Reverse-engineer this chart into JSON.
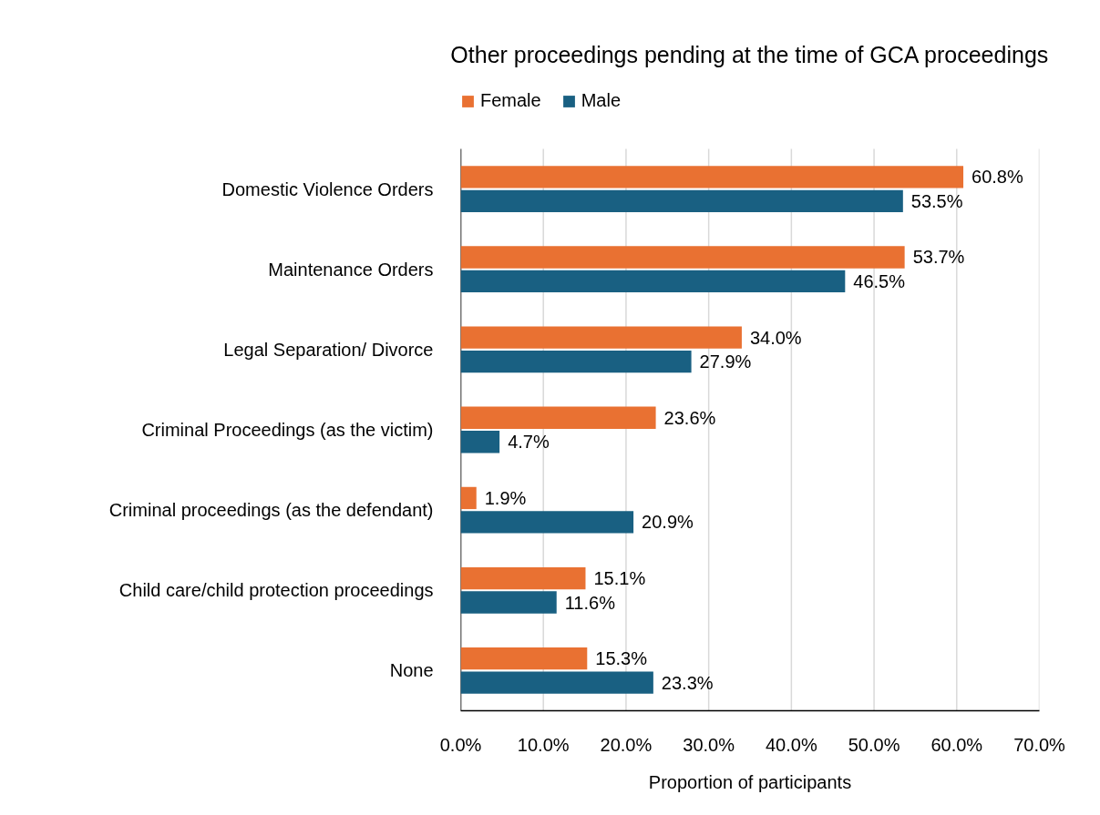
{
  "chart_data": {
    "type": "bar",
    "orientation": "horizontal",
    "title": "Other proceedings pending at the time of GCA proceedings",
    "xlabel": "Proportion of participants",
    "categories": [
      "Domestic Violence Orders",
      "Maintenance Orders",
      "Legal Separation/ Divorce",
      "Criminal Proceedings (as the victim)",
      "Criminal proceedings (as the defendant)",
      "Child care/child protection proceedings",
      "None"
    ],
    "series": [
      {
        "name": "Female",
        "color": "#e97132",
        "values": [
          60.8,
          53.7,
          34.0,
          23.6,
          1.9,
          15.1,
          15.3
        ],
        "value_labels": [
          "60.8%",
          "53.7%",
          "34.0%",
          "23.6%",
          "1.9%",
          "15.1%",
          "15.3%"
        ]
      },
      {
        "name": "Male",
        "color": "#196082",
        "values": [
          53.5,
          46.5,
          27.9,
          4.7,
          20.9,
          11.6,
          23.3
        ],
        "value_labels": [
          "53.5%",
          "46.5%",
          "27.9%",
          "4.7%",
          "20.9%",
          "11.6%",
          "23.3%"
        ]
      }
    ],
    "xlim": [
      0,
      70
    ],
    "xticks": [
      {
        "value": 0,
        "label": "0.0%"
      },
      {
        "value": 10,
        "label": "10.0%"
      },
      {
        "value": 20,
        "label": "20.0%"
      },
      {
        "value": 30,
        "label": "30.0%"
      },
      {
        "value": 40,
        "label": "40.0%"
      },
      {
        "value": 50,
        "label": "50.0%"
      },
      {
        "value": 60,
        "label": "60.0%"
      },
      {
        "value": 70,
        "label": "70.0%"
      }
    ],
    "grid": "x",
    "legend": "top"
  }
}
